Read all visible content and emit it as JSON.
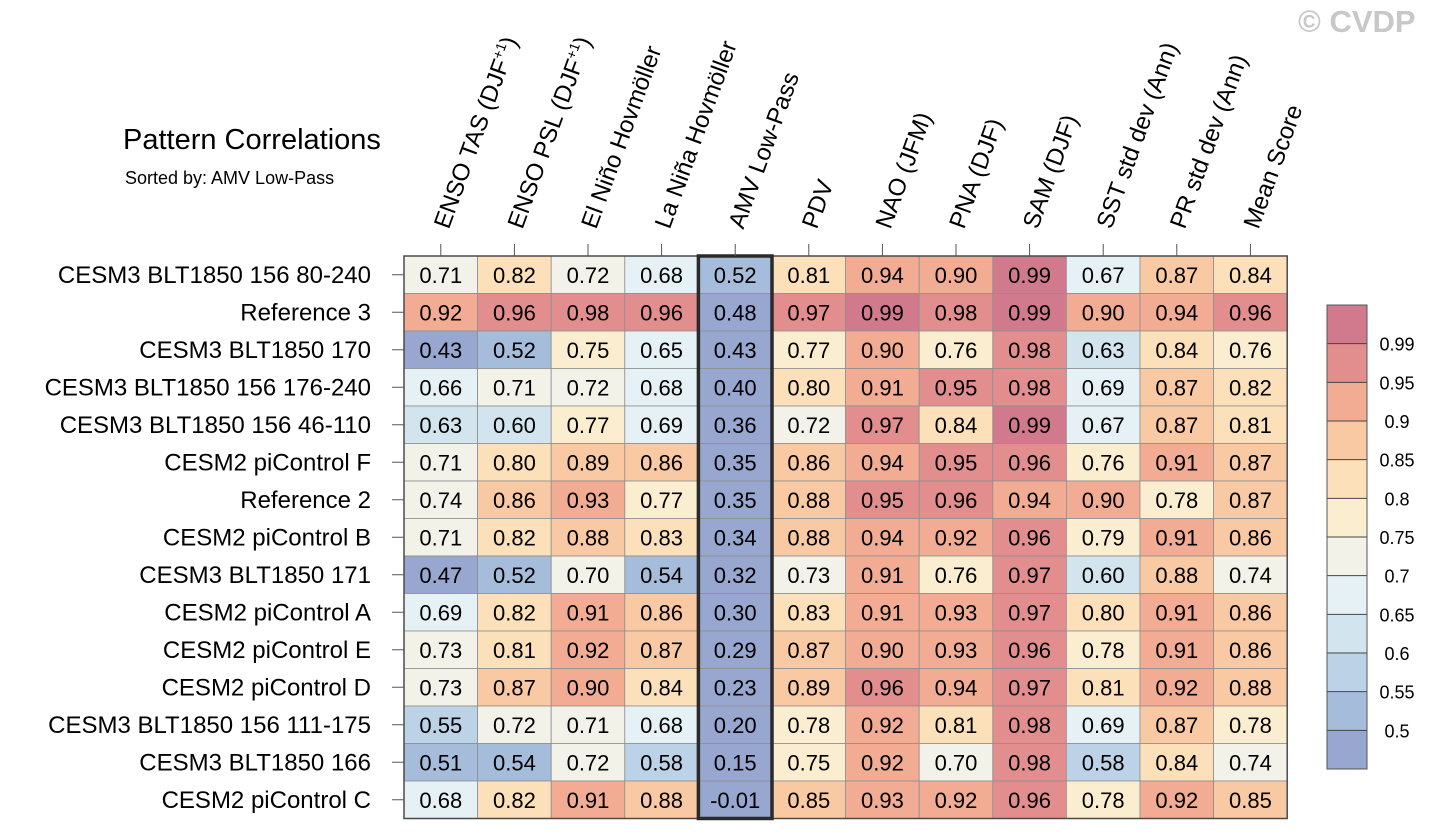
{
  "watermark": "© CVDP",
  "chart_data": {
    "type": "heatmap",
    "title": "Pattern Correlations",
    "subtitle": "Sorted by: AMV Low-Pass",
    "highlighted_column": "AMV Low-Pass",
    "columns": [
      {
        "label": "ENSO TAS (DJF",
        "sup": "+1",
        "close": ")"
      },
      {
        "label": "ENSO PSL (DJF",
        "sup": "+1",
        "close": ")"
      },
      {
        "label": "El Niño Hovmöller",
        "sup": "",
        "close": ""
      },
      {
        "label": "La Niña Hovmöller",
        "sup": "",
        "close": ""
      },
      {
        "label": "AMV Low-Pass",
        "sup": "",
        "close": ""
      },
      {
        "label": "PDV",
        "sup": "",
        "close": ""
      },
      {
        "label": "NAO (JFM)",
        "sup": "",
        "close": ""
      },
      {
        "label": "PNA (DJF)",
        "sup": "",
        "close": ""
      },
      {
        "label": "SAM (DJF)",
        "sup": "",
        "close": ""
      },
      {
        "label": "SST std dev (Ann)",
        "sup": "",
        "close": ""
      },
      {
        "label": "PR std dev (Ann)",
        "sup": "",
        "close": ""
      },
      {
        "label": "Mean Score",
        "sup": "",
        "close": ""
      }
    ],
    "rows": [
      {
        "label": "CESM3 BLT1850 156 80-240",
        "values": [
          "0.71",
          "0.82",
          "0.72",
          "0.68",
          "0.52",
          "0.81",
          "0.94",
          "0.90",
          "0.99",
          "0.67",
          "0.87",
          "0.84"
        ]
      },
      {
        "label": "Reference 3",
        "values": [
          "0.92",
          "0.96",
          "0.98",
          "0.96",
          "0.48",
          "0.97",
          "0.99",
          "0.98",
          "0.99",
          "0.90",
          "0.94",
          "0.96"
        ]
      },
      {
        "label": "CESM3 BLT1850 170",
        "values": [
          "0.43",
          "0.52",
          "0.75",
          "0.65",
          "0.43",
          "0.77",
          "0.90",
          "0.76",
          "0.98",
          "0.63",
          "0.84",
          "0.76"
        ]
      },
      {
        "label": "CESM3 BLT1850 156 176-240",
        "values": [
          "0.66",
          "0.71",
          "0.72",
          "0.68",
          "0.40",
          "0.80",
          "0.91",
          "0.95",
          "0.98",
          "0.69",
          "0.87",
          "0.82"
        ]
      },
      {
        "label": "CESM3 BLT1850 156 46-110",
        "values": [
          "0.63",
          "0.60",
          "0.77",
          "0.69",
          "0.36",
          "0.72",
          "0.97",
          "0.84",
          "0.99",
          "0.67",
          "0.87",
          "0.81"
        ]
      },
      {
        "label": "CESM2 piControl F",
        "values": [
          "0.71",
          "0.80",
          "0.89",
          "0.86",
          "0.35",
          "0.86",
          "0.94",
          "0.95",
          "0.96",
          "0.76",
          "0.91",
          "0.87"
        ]
      },
      {
        "label": "Reference 2",
        "values": [
          "0.74",
          "0.86",
          "0.93",
          "0.77",
          "0.35",
          "0.88",
          "0.95",
          "0.96",
          "0.94",
          "0.90",
          "0.78",
          "0.87"
        ]
      },
      {
        "label": "CESM2 piControl B",
        "values": [
          "0.71",
          "0.82",
          "0.88",
          "0.83",
          "0.34",
          "0.88",
          "0.94",
          "0.92",
          "0.96",
          "0.79",
          "0.91",
          "0.86"
        ]
      },
      {
        "label": "CESM3 BLT1850 171",
        "values": [
          "0.47",
          "0.52",
          "0.70",
          "0.54",
          "0.32",
          "0.73",
          "0.91",
          "0.76",
          "0.97",
          "0.60",
          "0.88",
          "0.74"
        ]
      },
      {
        "label": "CESM2 piControl A",
        "values": [
          "0.69",
          "0.82",
          "0.91",
          "0.86",
          "0.30",
          "0.83",
          "0.91",
          "0.93",
          "0.97",
          "0.80",
          "0.91",
          "0.86"
        ]
      },
      {
        "label": "CESM2 piControl E",
        "values": [
          "0.73",
          "0.81",
          "0.92",
          "0.87",
          "0.29",
          "0.87",
          "0.90",
          "0.93",
          "0.96",
          "0.78",
          "0.91",
          "0.86"
        ]
      },
      {
        "label": "CESM2 piControl D",
        "values": [
          "0.73",
          "0.87",
          "0.90",
          "0.84",
          "0.23",
          "0.89",
          "0.96",
          "0.94",
          "0.97",
          "0.81",
          "0.92",
          "0.88"
        ]
      },
      {
        "label": "CESM3 BLT1850 156 111-175",
        "values": [
          "0.55",
          "0.72",
          "0.71",
          "0.68",
          "0.20",
          "0.78",
          "0.92",
          "0.81",
          "0.98",
          "0.69",
          "0.87",
          "0.78"
        ]
      },
      {
        "label": "CESM3 BLT1850 166",
        "values": [
          "0.51",
          "0.54",
          "0.72",
          "0.58",
          "0.15",
          "0.75",
          "0.92",
          "0.70",
          "0.98",
          "0.58",
          "0.84",
          "0.74"
        ]
      },
      {
        "label": "CESM2 piControl C",
        "values": [
          "0.68",
          "0.82",
          "0.91",
          "0.88",
          "-0.01",
          "0.85",
          "0.93",
          "0.92",
          "0.96",
          "0.78",
          "0.92",
          "0.85"
        ]
      }
    ],
    "colorbar": {
      "levels": [
        "0.5",
        "0.55",
        "0.6",
        "0.65",
        "0.7",
        "0.75",
        "0.8",
        "0.85",
        "0.9",
        "0.95",
        "0.99"
      ],
      "colors": [
        "#97a7d0",
        "#a6bcdb",
        "#bcd2e6",
        "#d2e5ef",
        "#e6f1f5",
        "#f2f2e9",
        "#fbeed0",
        "#fce0b9",
        "#f9c9a4",
        "#f1ac93",
        "#e28e8e",
        "#d17a8e"
      ]
    }
  }
}
